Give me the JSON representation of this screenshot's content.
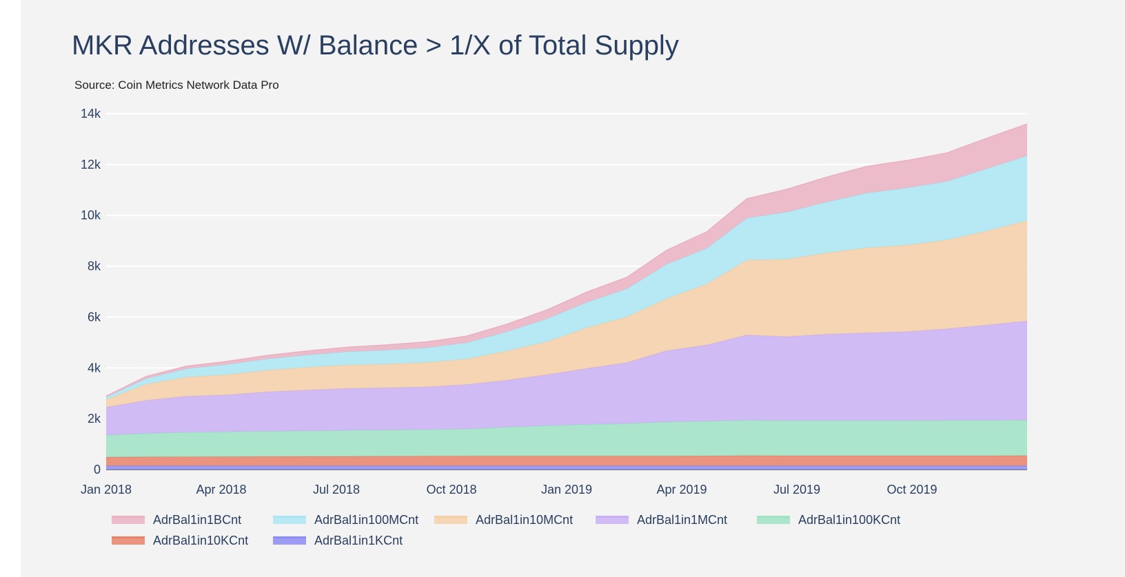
{
  "chart_data": {
    "type": "area",
    "title": "MKR Addresses W/ Balance > 1/X of Total Supply",
    "subtitle": "Source: Coin Metrics Network Data Pro",
    "stacked": true,
    "ylim": [
      0,
      14000
    ],
    "y_ticks": [
      {
        "value": 0,
        "label": "0"
      },
      {
        "value": 2000,
        "label": "2k"
      },
      {
        "value": 4000,
        "label": "4k"
      },
      {
        "value": 6000,
        "label": "6k"
      },
      {
        "value": 8000,
        "label": "8k"
      },
      {
        "value": 10000,
        "label": "10k"
      },
      {
        "value": 12000,
        "label": "12k"
      },
      {
        "value": 14000,
        "label": "14k"
      }
    ],
    "x_ticks": [
      "Jan 2018",
      "Apr 2018",
      "Jul 2018",
      "Oct 2018",
      "Jan 2019",
      "Apr 2019",
      "Jul 2019",
      "Oct 2019"
    ],
    "x": [
      "Jan 2018",
      "Feb 2018",
      "Mar 2018",
      "Apr 2018",
      "May 2018",
      "Jun 2018",
      "Jul 2018",
      "Aug 2018",
      "Sep 2018",
      "Oct 2018",
      "Nov 2018",
      "Dec 2018",
      "Jan 2019",
      "Feb 2019",
      "Mar 2019",
      "Apr 2019",
      "May 2019",
      "Jun 2019",
      "Jul 2019",
      "Aug 2019",
      "Sep 2019",
      "Oct 2019",
      "Nov 2019",
      "Dec 2019"
    ],
    "grid": true,
    "legend_position": "bottom",
    "series": [
      {
        "name": "AdrBal1in1KCnt",
        "color": "#8c8cf5",
        "values": [
          150,
          150,
          150,
          150,
          150,
          150,
          150,
          150,
          150,
          150,
          150,
          150,
          150,
          150,
          150,
          150,
          150,
          150,
          150,
          150,
          150,
          150,
          150,
          150
        ]
      },
      {
        "name": "AdrBal1in10KCnt",
        "color": "#e8826a",
        "values": [
          340,
          350,
          355,
          360,
          365,
          370,
          370,
          375,
          380,
          385,
          385,
          385,
          385,
          385,
          385,
          390,
          400,
          395,
          395,
          395,
          395,
          395,
          395,
          400
        ]
      },
      {
        "name": "AdrBal1in100KCnt",
        "color": "#9ee3c4",
        "values": [
          860,
          920,
          960,
          970,
          990,
          1000,
          1020,
          1030,
          1040,
          1060,
          1130,
          1190,
          1240,
          1270,
          1340,
          1360,
          1390,
          1380,
          1380,
          1380,
          1380,
          1390,
          1390,
          1390
        ]
      },
      {
        "name": "AdrBal1in1MCnt",
        "color": "#c9b0f5",
        "values": [
          1100,
          1300,
          1420,
          1450,
          1550,
          1600,
          1650,
          1660,
          1680,
          1750,
          1850,
          2000,
          2200,
          2400,
          2800,
          3000,
          3350,
          3300,
          3400,
          3450,
          3500,
          3600,
          3750,
          3900
        ]
      },
      {
        "name": "AdrBal1in10MCnt",
        "color": "#f5cfa8",
        "values": [
          300,
          640,
          750,
          800,
          850,
          900,
          920,
          930,
          960,
          1000,
          1150,
          1300,
          1600,
          1800,
          2050,
          2400,
          2950,
          3050,
          3200,
          3350,
          3400,
          3500,
          3700,
          3950
        ]
      },
      {
        "name": "AdrBal1in100MCnt",
        "color": "#aae6f2",
        "values": [
          100,
          220,
          330,
          400,
          440,
          480,
          520,
          550,
          580,
          640,
          750,
          900,
          1000,
          1100,
          1350,
          1400,
          1650,
          1850,
          2000,
          2150,
          2250,
          2300,
          2450,
          2550
        ]
      },
      {
        "name": "AdrBal1in1BCnt",
        "color": "#eab1c3",
        "values": [
          40,
          80,
          100,
          120,
          140,
          160,
          180,
          210,
          230,
          260,
          300,
          350,
          400,
          450,
          550,
          650,
          760,
          900,
          980,
          1050,
          1080,
          1120,
          1200,
          1250
        ]
      }
    ]
  },
  "legend_order": [
    "AdrBal1in1BCnt",
    "AdrBal1in100MCnt",
    "AdrBal1in10MCnt",
    "AdrBal1in1MCnt",
    "AdrBal1in100KCnt",
    "AdrBal1in10KCnt",
    "AdrBal1in1KCnt"
  ]
}
